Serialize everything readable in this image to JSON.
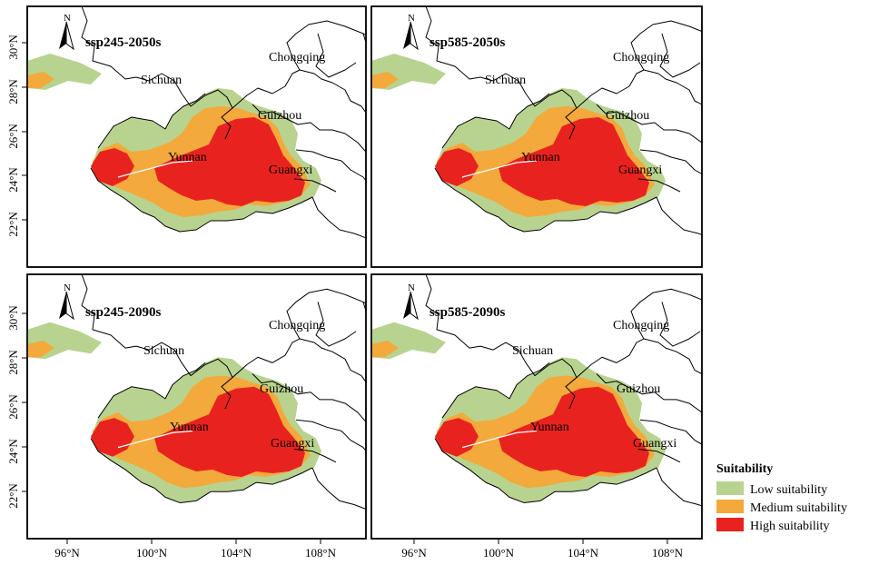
{
  "colors": {
    "low": "#b8d38f",
    "medium": "#f3a93b",
    "high": "#e8231f",
    "frame": "#000000",
    "boundary": "#000000"
  },
  "north_arrow": {
    "label": "N"
  },
  "x_ticks": [
    "96°N",
    "100°N",
    "104°N",
    "108°N"
  ],
  "y_ticks": [
    "30°N",
    "28°N",
    "26°N",
    "24°N",
    "22°N"
  ],
  "panels": [
    {
      "title": "ssp245-2050s",
      "labels": {
        "sichuan": "Sichuan",
        "chongqing": "Chongqing",
        "guizhou": "Guizhou",
        "yunnan": "Yunnan",
        "guangxi": "Guangxi"
      }
    },
    {
      "title": "ssp585-2050s",
      "labels": {
        "sichuan": "Sichuan",
        "chongqing": "Chongqing",
        "guizhou": "Guizhou",
        "yunnan": "Yunnan",
        "guangxi": "Guangxi"
      }
    },
    {
      "title": "ssp245-2090s",
      "labels": {
        "sichuan": "Sichuan",
        "chongqing": "Chongqing",
        "guizhou": "Guizhou",
        "yunnan": "Yunnan",
        "guangxi": "Guangxi"
      }
    },
    {
      "title": "ssp585-2090s",
      "labels": {
        "sichuan": "Sichuan",
        "chongqing": "Chongqing",
        "guizhou": "Guizhou",
        "yunnan": "Yunnan",
        "guangxi": "Guangxi"
      }
    }
  ],
  "legend": {
    "title": "Suitability",
    "items": [
      {
        "label": "Low suitability",
        "color": "#b8d38f"
      },
      {
        "label": "Medium suitability",
        "color": "#f3a93b"
      },
      {
        "label": "High suitability",
        "color": "#e8231f"
      }
    ]
  }
}
